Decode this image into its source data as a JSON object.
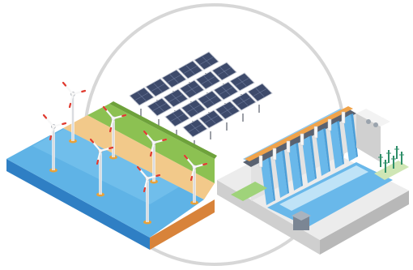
{
  "scene": {
    "subjects": [
      "offshore-wind-farm",
      "solar-panel-array",
      "hydroelectric-dam"
    ],
    "colors": {
      "background": "#ffffff",
      "ring": "#d4d4d4",
      "sea": "#5fb3e6",
      "sea_deep": "#3a8fd0",
      "sand": "#f2c98a",
      "grass": "#8cc152",
      "solar_panel": "#3d4a6b",
      "dam_concrete": "#e8e8e8",
      "water_flow": "#69b8ea",
      "turbine_accent": "#e03a2f"
    }
  }
}
